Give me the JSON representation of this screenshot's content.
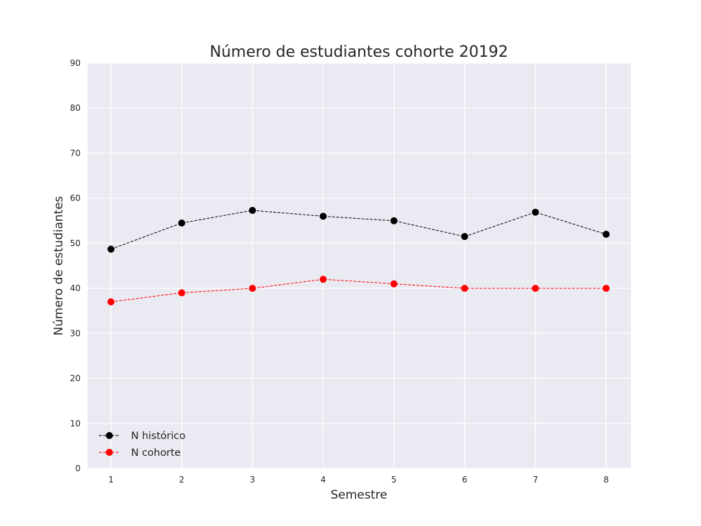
{
  "chart_data": {
    "type": "line",
    "title": "Número de estudiantes cohorte 20192",
    "xlabel": "Semestre",
    "ylabel": "Número de estudiantes",
    "x": [
      1,
      2,
      3,
      4,
      5,
      6,
      7,
      8
    ],
    "xlim": [
      0.67,
      8.35
    ],
    "ylim": [
      0,
      90
    ],
    "yticks": [
      0,
      10,
      20,
      30,
      40,
      50,
      60,
      70,
      80,
      90
    ],
    "grid": true,
    "legend_position": "lower-left",
    "series": [
      {
        "name": "N histórico",
        "color": "#000000",
        "line_style": "dashed",
        "marker": "circle",
        "values": [
          48.7,
          54.5,
          57.3,
          56.0,
          55.0,
          51.5,
          56.9,
          52.0
        ]
      },
      {
        "name": "N cohorte",
        "color": "#ff0000",
        "line_style": "dashed",
        "marker": "circle",
        "values": [
          37,
          39,
          40,
          42,
          41,
          40,
          40,
          40
        ]
      }
    ],
    "plot_background": "#eaeaf2"
  }
}
